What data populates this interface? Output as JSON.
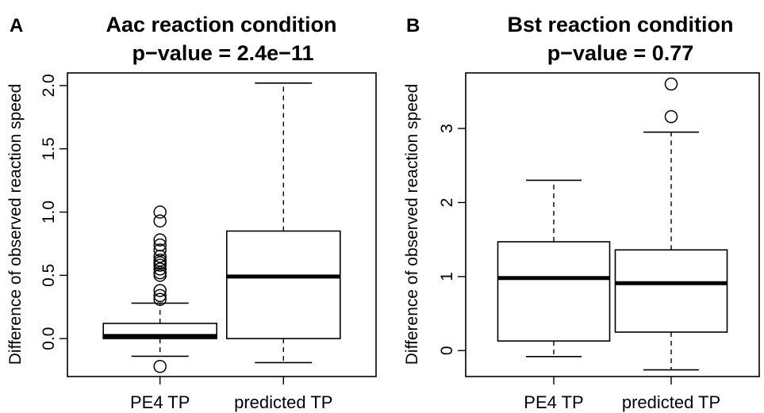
{
  "chart_data": [
    {
      "type": "boxplot",
      "panel_label": "A",
      "title": "Aac reaction condition",
      "subtitle": "p−value = 2.4e−11",
      "xlabel": "",
      "ylabel": "Difference of observed reaction speed",
      "categories": [
        "PE4 TP",
        "predicted TP"
      ],
      "ylim": [
        -0.3,
        2.1
      ],
      "yticks": [
        "0.0",
        "0.5",
        "1.0",
        "1.5",
        "2.0"
      ],
      "ytick_values": [
        0,
        0.5,
        1.0,
        1.5,
        2.0
      ],
      "boxes": [
        {
          "name": "PE4 TP",
          "whisker_low": -0.14,
          "q1": 0.0,
          "median": 0.02,
          "q3": 0.12,
          "whisker_high": 0.28,
          "outliers": [
            -0.22,
            0.31,
            0.34,
            0.38,
            0.5,
            0.52,
            0.55,
            0.58,
            0.6,
            0.62,
            0.65,
            0.7,
            0.74,
            0.78,
            0.93,
            1.0
          ]
        },
        {
          "name": "predicted TP",
          "whisker_low": -0.19,
          "q1": 0.0,
          "median": 0.49,
          "q3": 0.85,
          "whisker_high": 2.02,
          "outliers": []
        }
      ]
    },
    {
      "type": "boxplot",
      "panel_label": "B",
      "title": "Bst reaction condition",
      "subtitle": "p−value = 0.77",
      "xlabel": "",
      "ylabel": "Difference of observed reaction speed",
      "categories": [
        "PE4 TP",
        "predicted TP"
      ],
      "ylim": [
        -0.35,
        3.75
      ],
      "yticks": [
        "0",
        "1",
        "2",
        "3"
      ],
      "ytick_values": [
        0,
        1,
        2,
        3
      ],
      "boxes": [
        {
          "name": "PE4 TP",
          "whisker_low": -0.08,
          "q1": 0.13,
          "median": 0.98,
          "q3": 1.47,
          "whisker_high": 2.3,
          "outliers": []
        },
        {
          "name": "predicted TP",
          "whisker_low": -0.26,
          "q1": 0.25,
          "median": 0.91,
          "q3": 1.36,
          "whisker_high": 2.95,
          "outliers": [
            3.16,
            3.6
          ]
        }
      ]
    }
  ]
}
